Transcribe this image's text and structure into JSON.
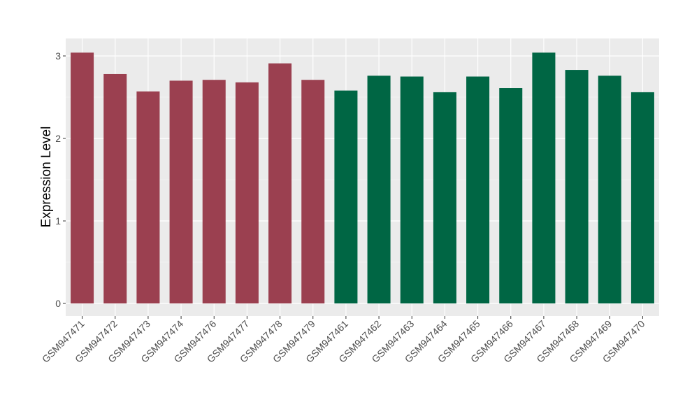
{
  "chart_data": {
    "type": "bar",
    "title": "",
    "xlabel": "",
    "ylabel": "Expression Level",
    "ylim": [
      -0.15,
      3.2
    ],
    "yticks": [
      0,
      1,
      2,
      3
    ],
    "grid": true,
    "legend": "none",
    "categories": [
      "GSM947471",
      "GSM947472",
      "GSM947473",
      "GSM947474",
      "GSM947476",
      "GSM947477",
      "GSM947478",
      "GSM947479",
      "GSM947461",
      "GSM947462",
      "GSM947463",
      "GSM947464",
      "GSM947465",
      "GSM947466",
      "GSM947467",
      "GSM947468",
      "GSM947469",
      "GSM947470"
    ],
    "values": [
      3.04,
      2.78,
      2.57,
      2.7,
      2.71,
      2.68,
      2.91,
      2.71,
      2.58,
      2.76,
      2.75,
      2.56,
      2.75,
      2.61,
      3.04,
      2.83,
      2.76,
      2.56
    ],
    "groups": [
      "A",
      "A",
      "A",
      "A",
      "A",
      "A",
      "A",
      "A",
      "B",
      "B",
      "B",
      "B",
      "B",
      "B",
      "B",
      "B",
      "B",
      "B"
    ],
    "group_colors": {
      "A": "#9b4050",
      "B": "#006644"
    },
    "panel_color": "#ebebeb"
  }
}
